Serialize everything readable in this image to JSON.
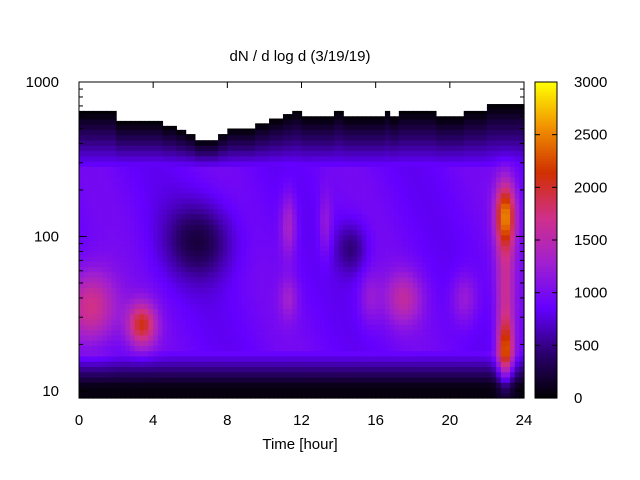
{
  "chart_data": {
    "type": "heatmap",
    "title": "dN / d log d (3/19/19)",
    "xlabel": "Time [hour]",
    "ylabel": "",
    "x_range": [
      0,
      24
    ],
    "y_range": [
      9,
      1000
    ],
    "y_scale": "log",
    "x_ticks": [
      0,
      4,
      8,
      12,
      16,
      20,
      24
    ],
    "x_tick_labels": [
      "0",
      "4",
      "8",
      "12",
      "16",
      "20",
      "24"
    ],
    "y_ticks": [
      10,
      100,
      1000
    ],
    "y_tick_labels": [
      "10",
      "100",
      "1000"
    ],
    "colorbar": {
      "range": [
        0,
        3000
      ],
      "ticks": [
        0,
        500,
        1000,
        1500,
        2000,
        2500,
        3000
      ],
      "tick_labels": [
        "0",
        "500",
        "1000",
        "1500",
        "2000",
        "2500",
        "3000"
      ],
      "palette": [
        "#000000",
        "#2b006e",
        "#6400ff",
        "#a020d0",
        "#d0308a",
        "#d03000",
        "#f09000",
        "#ffff00"
      ]
    },
    "upper_edge": {
      "x": [
        0,
        1,
        2,
        3,
        4,
        4.6,
        5.2,
        5.7,
        6.2,
        7,
        7.5,
        8,
        9,
        9.6,
        10.2,
        11,
        11.5,
        12,
        13,
        13.8,
        14.3,
        15,
        16,
        16.4,
        16.8,
        17.3,
        18,
        18.5,
        19.2,
        20,
        20.7,
        21.3,
        22,
        22.6,
        23,
        23.3,
        23.6,
        24
      ],
      "y": [
        650,
        650,
        560,
        560,
        560,
        520,
        490,
        460,
        420,
        420,
        460,
        500,
        500,
        540,
        580,
        620,
        650,
        600,
        600,
        650,
        600,
        600,
        600,
        650,
        600,
        650,
        650,
        650,
        600,
        600,
        650,
        650,
        720,
        720,
        720,
        720,
        720,
        720
      ]
    },
    "features": [
      {
        "x": 0.6,
        "y": 35,
        "value": 1800,
        "sx": 1.0,
        "sy": 0.17
      },
      {
        "x": 3.4,
        "y": 27,
        "value": 2000,
        "sx": 0.55,
        "sy": 0.1
      },
      {
        "x": 23.0,
        "y": 140,
        "value": 2300,
        "sx": 0.38,
        "sy": 0.15
      },
      {
        "x": 23.0,
        "y": 18,
        "value": 2100,
        "sx": 0.3,
        "sy": 0.14
      },
      {
        "x": 23.0,
        "y": 45,
        "value": 1600,
        "sx": 0.35,
        "sy": 0.3
      },
      {
        "x": 17.5,
        "y": 40,
        "value": 1500,
        "sx": 0.7,
        "sy": 0.12
      },
      {
        "x": 20.8,
        "y": 40,
        "value": 1300,
        "sx": 0.5,
        "sy": 0.12
      },
      {
        "x": 11.3,
        "y": 120,
        "value": 1400,
        "sx": 0.3,
        "sy": 0.15
      },
      {
        "x": 11.3,
        "y": 40,
        "value": 1250,
        "sx": 0.35,
        "sy": 0.1
      },
      {
        "x": 13.3,
        "y": 120,
        "value": 1250,
        "sx": 0.25,
        "sy": 0.15
      },
      {
        "x": 15.7,
        "y": 40,
        "value": 1200,
        "sx": 0.4,
        "sy": 0.12
      }
    ],
    "lows": [
      {
        "x": 6.5,
        "y": 95,
        "value": 300,
        "sx": 1.3,
        "sy": 0.17
      },
      {
        "x": 14.7,
        "y": 85,
        "value": 450,
        "sx": 0.6,
        "sy": 0.12
      }
    ]
  }
}
